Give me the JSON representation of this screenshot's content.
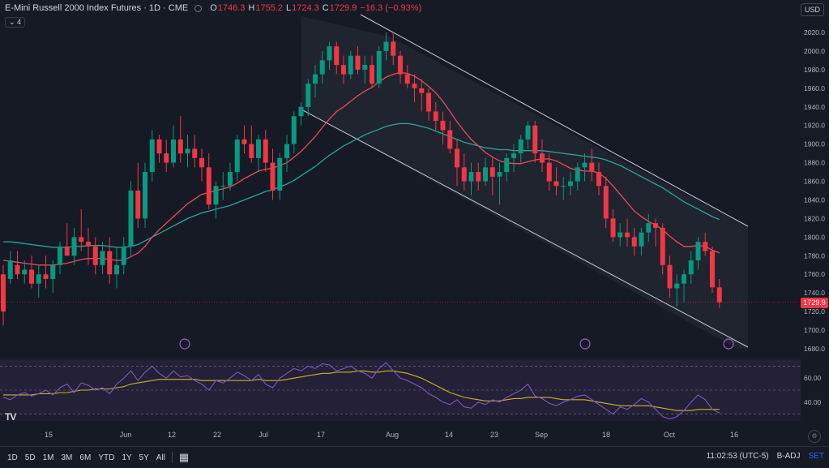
{
  "header": {
    "symbol": "E-Mini Russell 2000 Index Futures · 1D · CME",
    "open_label": "O",
    "open": "1746.3",
    "high_label": "H",
    "high": "1755.2",
    "low_label": "L",
    "low": "1724.3",
    "close_label": "C",
    "close": "1729.9",
    "change": "−16.3 (−0.93%)"
  },
  "indicator_count": "⌄ 4",
  "currency": "USD",
  "price_axis": [
    "2020.0",
    "2000.0",
    "1980.0",
    "1960.0",
    "1940.0",
    "1920.0",
    "1900.0",
    "1880.0",
    "1860.0",
    "1840.0",
    "1820.0",
    "1800.0",
    "1780.0",
    "1760.0",
    "1740.0",
    "1720.0",
    "1700.0",
    "1680.0"
  ],
  "last_price": "1729.9",
  "rsi_axis": [
    "60.00",
    "40.00"
  ],
  "time_axis": [
    "15",
    "Jun",
    "12",
    "22",
    "Jul",
    "17",
    "Aug",
    "14",
    "23",
    "Sep",
    "18",
    "Oct",
    "16"
  ],
  "bottom": {
    "ranges": [
      "1D",
      "5D",
      "1M",
      "3M",
      "6M",
      "YTD",
      "1Y",
      "5Y",
      "All"
    ],
    "clock": "11:02:53 (UTC-5)",
    "badj": "B-ADJ",
    "set": "SET"
  },
  "colors": {
    "up": "#089981",
    "down": "#f23645",
    "ma_fast": "#e84c5a",
    "ma_slow": "#26a69a",
    "rsi": "#7e57c2",
    "rsi_ma": "#c9b52a"
  },
  "chart_data": {
    "type": "candlestick",
    "ylim": [
      1680,
      2030
    ],
    "candles": [
      [
        1760,
        1770,
        1705,
        1720
      ],
      [
        1755,
        1785,
        1750,
        1775
      ],
      [
        1770,
        1785,
        1755,
        1760
      ],
      [
        1760,
        1775,
        1750,
        1765
      ],
      [
        1765,
        1780,
        1745,
        1750
      ],
      [
        1750,
        1770,
        1735,
        1760
      ],
      [
        1760,
        1780,
        1745,
        1755
      ],
      [
        1755,
        1775,
        1740,
        1770
      ],
      [
        1770,
        1795,
        1760,
        1790
      ],
      [
        1790,
        1815,
        1780,
        1780
      ],
      [
        1780,
        1810,
        1770,
        1800
      ],
      [
        1800,
        1830,
        1785,
        1795
      ],
      [
        1795,
        1810,
        1770,
        1790
      ],
      [
        1790,
        1800,
        1760,
        1770
      ],
      [
        1770,
        1795,
        1760,
        1785
      ],
      [
        1785,
        1800,
        1750,
        1760
      ],
      [
        1760,
        1790,
        1745,
        1770
      ],
      [
        1770,
        1800,
        1760,
        1790
      ],
      [
        1790,
        1860,
        1780,
        1850
      ],
      [
        1850,
        1880,
        1810,
        1820
      ],
      [
        1820,
        1880,
        1810,
        1870
      ],
      [
        1870,
        1915,
        1860,
        1905
      ],
      [
        1905,
        1910,
        1880,
        1890
      ],
      [
        1890,
        1905,
        1870,
        1880
      ],
      [
        1880,
        1920,
        1875,
        1905
      ],
      [
        1905,
        1930,
        1880,
        1890
      ],
      [
        1890,
        1910,
        1875,
        1895
      ],
      [
        1895,
        1910,
        1875,
        1885
      ],
      [
        1885,
        1895,
        1860,
        1875
      ],
      [
        1875,
        1890,
        1830,
        1835
      ],
      [
        1835,
        1860,
        1820,
        1855
      ],
      [
        1855,
        1870,
        1840,
        1855
      ],
      [
        1855,
        1880,
        1850,
        1870
      ],
      [
        1870,
        1910,
        1860,
        1905
      ],
      [
        1905,
        1920,
        1890,
        1900
      ],
      [
        1900,
        1920,
        1880,
        1885
      ],
      [
        1885,
        1910,
        1870,
        1905
      ],
      [
        1905,
        1915,
        1870,
        1880
      ],
      [
        1880,
        1895,
        1840,
        1850
      ],
      [
        1850,
        1890,
        1840,
        1885
      ],
      [
        1885,
        1910,
        1870,
        1900
      ],
      [
        1900,
        1935,
        1890,
        1930
      ],
      [
        1930,
        1945,
        1920,
        1940
      ],
      [
        1940,
        1970,
        1930,
        1965
      ],
      [
        1965,
        1985,
        1950,
        1975
      ],
      [
        1975,
        2000,
        1965,
        1990
      ],
      [
        1990,
        2010,
        1980,
        2005
      ],
      [
        2005,
        2010,
        1975,
        1985
      ],
      [
        1985,
        1995,
        1965,
        1975
      ],
      [
        1975,
        2000,
        1970,
        1995
      ],
      [
        1995,
        2005,
        1975,
        1980
      ],
      [
        1980,
        1995,
        1965,
        1985
      ],
      [
        1985,
        1995,
        1960,
        1965
      ],
      [
        1965,
        2005,
        1960,
        2000
      ],
      [
        2000,
        2020,
        1990,
        2010
      ],
      [
        2010,
        2020,
        1985,
        1995
      ],
      [
        1995,
        2000,
        1965,
        1975
      ],
      [
        1975,
        1985,
        1960,
        1965
      ],
      [
        1965,
        1975,
        1945,
        1960
      ],
      [
        1960,
        1970,
        1935,
        1955
      ],
      [
        1955,
        1960,
        1925,
        1935
      ],
      [
        1935,
        1945,
        1915,
        1925
      ],
      [
        1925,
        1935,
        1900,
        1915
      ],
      [
        1915,
        1925,
        1890,
        1895
      ],
      [
        1895,
        1905,
        1855,
        1875
      ],
      [
        1875,
        1890,
        1850,
        1860
      ],
      [
        1860,
        1880,
        1845,
        1870
      ],
      [
        1870,
        1880,
        1850,
        1860
      ],
      [
        1860,
        1885,
        1855,
        1875
      ],
      [
        1875,
        1885,
        1845,
        1865
      ],
      [
        1865,
        1880,
        1835,
        1870
      ],
      [
        1870,
        1890,
        1860,
        1885
      ],
      [
        1885,
        1900,
        1870,
        1890
      ],
      [
        1890,
        1910,
        1880,
        1905
      ],
      [
        1905,
        1925,
        1895,
        1920
      ],
      [
        1920,
        1925,
        1880,
        1890
      ],
      [
        1890,
        1905,
        1870,
        1880
      ],
      [
        1880,
        1890,
        1850,
        1860
      ],
      [
        1860,
        1875,
        1845,
        1855
      ],
      [
        1855,
        1865,
        1840,
        1855
      ],
      [
        1855,
        1870,
        1845,
        1860
      ],
      [
        1860,
        1880,
        1850,
        1875
      ],
      [
        1875,
        1890,
        1860,
        1880
      ],
      [
        1880,
        1895,
        1860,
        1870
      ],
      [
        1870,
        1880,
        1845,
        1855
      ],
      [
        1855,
        1865,
        1810,
        1820
      ],
      [
        1820,
        1830,
        1795,
        1800
      ],
      [
        1800,
        1815,
        1790,
        1805
      ],
      [
        1805,
        1820,
        1790,
        1800
      ],
      [
        1800,
        1810,
        1780,
        1790
      ],
      [
        1790,
        1810,
        1780,
        1805
      ],
      [
        1805,
        1825,
        1795,
        1815
      ],
      [
        1815,
        1820,
        1790,
        1810
      ],
      [
        1810,
        1815,
        1760,
        1770
      ],
      [
        1770,
        1780,
        1735,
        1745
      ],
      [
        1745,
        1760,
        1725,
        1750
      ],
      [
        1750,
        1765,
        1730,
        1760
      ],
      [
        1760,
        1785,
        1750,
        1775
      ],
      [
        1775,
        1800,
        1765,
        1795
      ],
      [
        1795,
        1805,
        1780,
        1785
      ],
      [
        1785,
        1790,
        1740,
        1746
      ],
      [
        1746,
        1755,
        1724,
        1730
      ]
    ],
    "ma_fast": [
      1775,
      1774,
      1773,
      1772,
      1771,
      1770,
      1770,
      1770,
      1771,
      1772,
      1774,
      1776,
      1777,
      1777,
      1777,
      1776,
      1775,
      1775,
      1779,
      1783,
      1790,
      1800,
      1808,
      1815,
      1822,
      1829,
      1836,
      1841,
      1846,
      1848,
      1850,
      1852,
      1854,
      1858,
      1863,
      1867,
      1871,
      1873,
      1874,
      1877,
      1880,
      1886,
      1892,
      1900,
      1908,
      1918,
      1927,
      1935,
      1940,
      1946,
      1952,
      1957,
      1961,
      1967,
      1972,
      1975,
      1977,
      1976,
      1973,
      1968,
      1962,
      1955,
      1946,
      1935,
      1924,
      1914,
      1905,
      1898,
      1891,
      1886,
      1882,
      1880,
      1879,
      1879,
      1881,
      1883,
      1884,
      1884,
      1882,
      1878,
      1874,
      1872,
      1871,
      1871,
      1869,
      1863,
      1855,
      1846,
      1837,
      1828,
      1822,
      1817,
      1813,
      1808,
      1801,
      1795,
      1790,
      1790,
      1791,
      1790,
      1786,
      1783
    ],
    "ma_slow": [
      1795,
      1795,
      1794,
      1793,
      1792,
      1791,
      1790,
      1789,
      1789,
      1789,
      1790,
      1790,
      1791,
      1791,
      1791,
      1790,
      1789,
      1789,
      1790,
      1792,
      1796,
      1800,
      1804,
      1808,
      1812,
      1816,
      1820,
      1823,
      1826,
      1828,
      1830,
      1832,
      1834,
      1837,
      1840,
      1843,
      1846,
      1849,
      1851,
      1854,
      1857,
      1861,
      1866,
      1871,
      1876,
      1882,
      1888,
      1893,
      1898,
      1902,
      1906,
      1910,
      1913,
      1916,
      1919,
      1921,
      1922,
      1922,
      1921,
      1919,
      1917,
      1914,
      1911,
      1908,
      1905,
      1902,
      1900,
      1898,
      1896,
      1895,
      1894,
      1894,
      1893,
      1893,
      1893,
      1893,
      1893,
      1892,
      1891,
      1890,
      1889,
      1888,
      1887,
      1886,
      1885,
      1883,
      1880,
      1877,
      1873,
      1869,
      1865,
      1861,
      1857,
      1853,
      1848,
      1843,
      1838,
      1834,
      1830,
      1826,
      1822,
      1819
    ],
    "rsi": [
      44,
      42,
      46,
      48,
      45,
      47,
      50,
      46,
      52,
      55,
      48,
      56,
      54,
      50,
      52,
      47,
      55,
      60,
      66,
      58,
      65,
      70,
      64,
      60,
      66,
      61,
      62,
      58,
      55,
      50,
      58,
      56,
      60,
      65,
      62,
      58,
      63,
      55,
      52,
      60,
      64,
      68,
      66,
      70,
      68,
      72,
      71,
      66,
      68,
      70,
      66,
      64,
      60,
      68,
      73,
      66,
      60,
      58,
      55,
      52,
      47,
      44,
      40,
      38,
      42,
      36,
      35,
      40,
      38,
      42,
      40,
      44,
      47,
      50,
      55,
      45,
      43,
      39,
      37,
      40,
      42,
      45,
      46,
      42,
      38,
      34,
      30,
      36,
      34,
      38,
      43,
      40,
      34,
      28,
      26,
      28,
      33,
      40,
      46,
      42,
      34,
      31
    ],
    "rsi_ma": [
      46,
      46,
      46,
      46,
      46,
      47,
      47,
      47,
      48,
      48,
      49,
      50,
      50,
      51,
      51,
      51,
      52,
      53,
      55,
      56,
      57,
      58,
      59,
      59,
      59,
      59,
      59,
      59,
      58,
      58,
      58,
      58,
      58,
      58,
      58,
      58,
      59,
      58,
      58,
      58,
      59,
      60,
      61,
      62,
      63,
      64,
      64,
      65,
      65,
      65,
      66,
      66,
      65,
      65,
      66,
      66,
      65,
      64,
      62,
      60,
      57,
      54,
      51,
      48,
      46,
      44,
      43,
      42,
      41,
      41,
      41,
      42,
      43,
      43,
      44,
      44,
      44,
      44,
      43,
      42,
      42,
      42,
      42,
      41,
      40,
      39,
      38,
      37,
      37,
      37,
      37,
      37,
      36,
      35,
      34,
      33,
      33,
      33,
      34,
      34,
      34,
      34
    ]
  }
}
